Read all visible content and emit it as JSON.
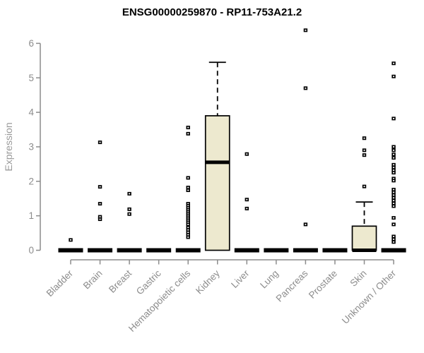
{
  "chart_data": {
    "type": "boxplot",
    "title": "ENSG00000259870 - RP11-753A21.2",
    "ylabel": "Expression",
    "xlabel": "",
    "ylim": [
      0,
      6.5
    ],
    "yticks": [
      0,
      1,
      2,
      3,
      4,
      5,
      6
    ],
    "grid": false,
    "legend": null,
    "colors": {
      "box_fill": "#EDE9CF",
      "box_stroke": "#000000",
      "median": "#000000",
      "axis": "#8C8C8C",
      "tick_text": "#8C8C8C",
      "title_text": "#000000",
      "background": "#FFFFFF"
    },
    "categories": [
      "Bladder",
      "Brain",
      "Breast",
      "Gastric",
      "Hematopoietic cells",
      "Kidney",
      "Liver",
      "Lung",
      "Pancreas",
      "Prostate",
      "Skin",
      "Unknown / Other"
    ],
    "series": [
      {
        "name": "Bladder",
        "q1": 0,
        "median": 0,
        "q3": 0,
        "whisker_low": 0,
        "whisker_high": 0,
        "outliers": [
          0.3
        ]
      },
      {
        "name": "Brain",
        "q1": 0,
        "median": 0,
        "q3": 0,
        "whisker_low": 0,
        "whisker_high": 0,
        "outliers": [
          3.13,
          1.84,
          1.35,
          0.97,
          0.9
        ]
      },
      {
        "name": "Breast",
        "q1": 0,
        "median": 0,
        "q3": 0,
        "whisker_low": 0,
        "whisker_high": 0,
        "outliers": [
          1.64,
          1.19,
          1.05
        ]
      },
      {
        "name": "Gastric",
        "q1": 0,
        "median": 0,
        "q3": 0,
        "whisker_low": 0,
        "whisker_high": 0,
        "outliers": []
      },
      {
        "name": "Hematopoietic cells",
        "q1": 0,
        "median": 0,
        "q3": 0,
        "whisker_low": 0,
        "whisker_high": 0,
        "outliers": [
          3.56,
          3.38,
          2.1,
          1.82,
          1.74,
          1.35,
          1.29,
          1.23,
          1.17,
          1.11,
          1.05,
          0.99,
          0.93,
          0.87,
          0.81,
          0.75,
          0.66,
          0.59,
          0.52,
          0.45,
          0.38
        ]
      },
      {
        "name": "Kidney",
        "q1": 0,
        "median": 2.55,
        "q3": 3.9,
        "whisker_low": 0,
        "whisker_high": 5.45,
        "outliers": []
      },
      {
        "name": "Liver",
        "q1": 0,
        "median": 0,
        "q3": 0,
        "whisker_low": 0,
        "whisker_high": 0,
        "outliers": [
          2.79,
          1.47,
          1.21
        ]
      },
      {
        "name": "Lung",
        "q1": 0,
        "median": 0,
        "q3": 0,
        "whisker_low": 0,
        "whisker_high": 0,
        "outliers": []
      },
      {
        "name": "Pancreas",
        "q1": 0,
        "median": 0,
        "q3": 0,
        "whisker_low": 0,
        "whisker_high": 0,
        "outliers": [
          6.38,
          4.7,
          0.75
        ]
      },
      {
        "name": "Prostate",
        "q1": 0,
        "median": 0,
        "q3": 0,
        "whisker_low": 0,
        "whisker_high": 0,
        "outliers": []
      },
      {
        "name": "Skin",
        "q1": 0,
        "median": 0,
        "q3": 0.7,
        "whisker_low": 0,
        "whisker_high": 1.4,
        "outliers": [
          3.25,
          2.9,
          2.76,
          1.85
        ]
      },
      {
        "name": "Unknown / Other",
        "q1": 0,
        "median": 0,
        "q3": 0,
        "whisker_low": 0,
        "whisker_high": 0,
        "outliers": [
          5.42,
          5.04,
          3.82,
          3.0,
          2.9,
          2.78,
          2.68,
          2.48,
          2.4,
          2.32,
          2.25,
          2.08,
          2.02,
          1.76,
          1.68,
          1.6,
          1.52,
          1.44,
          1.36,
          1.28,
          0.94,
          0.75,
          0.4,
          0.32,
          0.24
        ]
      }
    ]
  }
}
